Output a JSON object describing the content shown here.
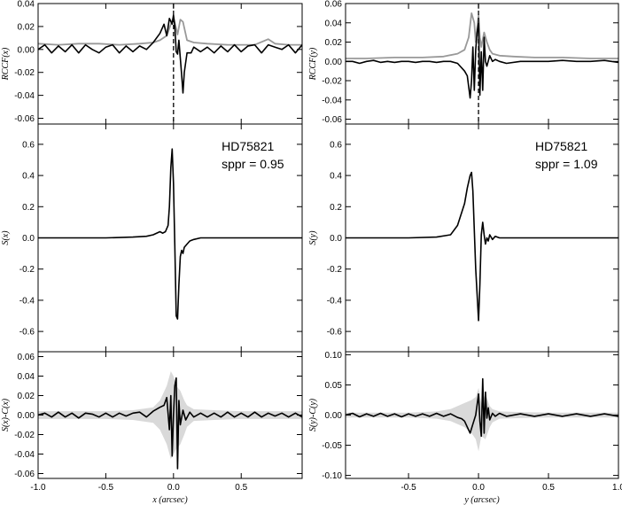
{
  "colors": {
    "primary": "#000000",
    "secondary": "#999999",
    "envelope": "#d9d9d9",
    "background": "#ffffff"
  },
  "chart_data": [
    {
      "type": "line",
      "panel": "x-top",
      "ylabel": "RCCF(x)",
      "xlim": [
        -1.0,
        0.95
      ],
      "ylim": [
        -0.065,
        0.04
      ],
      "yticks": [
        -0.06,
        -0.04,
        -0.02,
        0.0,
        0.02,
        0.04
      ],
      "ytick_labels": [
        "-0.06",
        "-0.04",
        "-0.02",
        "0.00",
        "0.02",
        "0.04"
      ],
      "xticks": [
        -1.0,
        -0.5,
        0.0,
        0.5
      ],
      "vline": 0.0,
      "series": [
        {
          "x": [
            -1.0,
            -0.85,
            -0.7,
            -0.55,
            -0.4,
            -0.25,
            -0.15,
            -0.1,
            -0.05,
            -0.02,
            0.0,
            0.02,
            0.03,
            0.05,
            0.07,
            0.1,
            0.15,
            0.25,
            0.4,
            0.6,
            0.7,
            0.75,
            0.85,
            0.95
          ],
          "y": [
            0.005,
            0.004,
            0.005,
            0.005,
            0.004,
            0.005,
            0.006,
            0.008,
            0.012,
            0.022,
            0.028,
            0.018,
            0.013,
            0.026,
            0.024,
            0.008,
            0.006,
            0.005,
            0.004,
            0.004,
            0.009,
            0.005,
            0.004,
            0.004
          ]
        },
        {
          "x": [
            -1.0,
            -0.95,
            -0.9,
            -0.85,
            -0.8,
            -0.75,
            -0.7,
            -0.65,
            -0.6,
            -0.55,
            -0.5,
            -0.45,
            -0.4,
            -0.35,
            -0.3,
            -0.25,
            -0.2,
            -0.15,
            -0.1,
            -0.07,
            -0.05,
            -0.03,
            -0.01,
            0.0,
            0.01,
            0.02,
            0.03,
            0.04,
            0.06,
            0.07,
            0.08,
            0.1,
            0.13,
            0.15,
            0.2,
            0.25,
            0.3,
            0.35,
            0.4,
            0.45,
            0.5,
            0.55,
            0.6,
            0.65,
            0.7,
            0.75,
            0.8,
            0.85,
            0.9,
            0.95
          ],
          "y": [
            0.0,
            0.004,
            -0.003,
            0.003,
            -0.002,
            0.004,
            -0.003,
            0.004,
            0.0,
            -0.003,
            0.002,
            0.004,
            -0.003,
            0.003,
            -0.002,
            0.003,
            0.0,
            0.006,
            0.014,
            0.022,
            0.012,
            0.027,
            0.022,
            0.03,
            0.02,
            -0.002,
            -0.004,
            0.008,
            -0.022,
            -0.038,
            -0.02,
            -0.003,
            -0.003,
            0.002,
            -0.002,
            0.002,
            -0.003,
            0.003,
            -0.002,
            0.004,
            -0.002,
            0.003,
            0.004,
            -0.003,
            0.004,
            0.002,
            0.0,
            0.004,
            -0.003,
            0.004
          ]
        }
      ]
    },
    {
      "type": "line",
      "panel": "x-middle",
      "ylabel": "S(x)",
      "xlim": [
        -1.0,
        0.95
      ],
      "ylim": [
        -0.73,
        0.73
      ],
      "yticks": [
        -0.6,
        -0.4,
        -0.2,
        0.0,
        0.2,
        0.4,
        0.6
      ],
      "ytick_labels": [
        "-0.6",
        "-0.4",
        "-0.2",
        "0.0",
        "0.2",
        "0.4",
        "0.6"
      ],
      "xticks": [
        -1.0,
        -0.5,
        0.0,
        0.5
      ],
      "annotations": [
        "HD75821",
        "sppr = 0.95"
      ],
      "series": [
        {
          "x": [
            -1.0,
            -0.5,
            -0.3,
            -0.2,
            -0.15,
            -0.1,
            -0.08,
            -0.06,
            -0.04,
            -0.03,
            -0.02,
            -0.01,
            0.0,
            0.01,
            0.02,
            0.03,
            0.04,
            0.05,
            0.06,
            0.07,
            0.08,
            0.1,
            0.12,
            0.15,
            0.2,
            0.3,
            0.5,
            1.0
          ],
          "y": [
            0.0,
            0.0,
            0.005,
            0.01,
            0.02,
            0.04,
            0.03,
            0.04,
            0.08,
            0.2,
            0.45,
            0.57,
            0.35,
            -0.05,
            -0.5,
            -0.52,
            -0.3,
            -0.12,
            -0.08,
            -0.1,
            -0.06,
            -0.04,
            -0.02,
            -0.01,
            0.0,
            0.0,
            0.0,
            0.0
          ]
        }
      ]
    },
    {
      "type": "line",
      "panel": "x-bottom",
      "ylabel": "S(x)-C(x)",
      "xlabel": "x (arcsec)",
      "xlim": [
        -1.0,
        0.95
      ],
      "ylim": [
        -0.065,
        0.065
      ],
      "yticks": [
        -0.06,
        -0.04,
        -0.02,
        0.0,
        0.02,
        0.04,
        0.06
      ],
      "ytick_labels": [
        "-0.06",
        "-0.04",
        "-0.02",
        "0.00",
        "0.02",
        "0.04",
        "0.06"
      ],
      "xticks": [
        -1.0,
        -0.5,
        0.0,
        0.5
      ],
      "xtick_labels": [
        "-1.0",
        "-0.5",
        "0.0",
        "0.5"
      ],
      "envelope": {
        "x": [
          -1.0,
          -0.5,
          -0.3,
          -0.15,
          -0.1,
          -0.05,
          -0.02,
          0.0,
          0.02,
          0.05,
          0.08,
          0.1,
          0.15,
          0.3,
          0.5,
          1.0
        ],
        "upper": [
          0.004,
          0.004,
          0.005,
          0.008,
          0.015,
          0.03,
          0.045,
          0.04,
          0.03,
          0.025,
          0.015,
          0.01,
          0.006,
          0.005,
          0.004,
          0.004
        ],
        "lower": [
          -0.004,
          -0.004,
          -0.005,
          -0.008,
          -0.015,
          -0.03,
          -0.045,
          -0.04,
          -0.035,
          -0.03,
          -0.02,
          -0.012,
          -0.006,
          -0.005,
          -0.004,
          -0.004
        ]
      },
      "series": [
        {
          "x": [
            -1.0,
            -0.95,
            -0.9,
            -0.85,
            -0.8,
            -0.75,
            -0.7,
            -0.65,
            -0.6,
            -0.55,
            -0.5,
            -0.45,
            -0.4,
            -0.35,
            -0.3,
            -0.25,
            -0.2,
            -0.15,
            -0.1,
            -0.07,
            -0.05,
            -0.03,
            -0.02,
            -0.01,
            0.0,
            0.01,
            0.02,
            0.03,
            0.04,
            0.05,
            0.07,
            0.09,
            0.12,
            0.15,
            0.2,
            0.25,
            0.3,
            0.35,
            0.4,
            0.45,
            0.5,
            0.55,
            0.6,
            0.65,
            0.7,
            0.75,
            0.8,
            0.85,
            0.9,
            0.95
          ],
          "y": [
            0.0,
            0.002,
            -0.002,
            0.003,
            -0.002,
            0.002,
            -0.003,
            0.002,
            0.001,
            -0.002,
            0.002,
            -0.002,
            0.002,
            -0.001,
            0.002,
            0.003,
            -0.002,
            0.004,
            0.008,
            0.01,
            0.018,
            -0.015,
            0.02,
            -0.042,
            0.0,
            0.03,
            0.038,
            -0.055,
            0.015,
            -0.01,
            0.005,
            -0.005,
            0.003,
            -0.002,
            0.002,
            -0.002,
            0.002,
            -0.002,
            0.003,
            -0.002,
            0.002,
            -0.002,
            0.003,
            -0.002,
            0.002,
            -0.001,
            0.002,
            -0.002,
            0.002,
            -0.002
          ]
        }
      ]
    },
    {
      "type": "line",
      "panel": "y-top",
      "ylabel": "RCCF(y)",
      "xlim": [
        -0.95,
        1.0
      ],
      "ylim": [
        -0.065,
        0.06
      ],
      "yticks": [
        -0.06,
        -0.04,
        -0.02,
        0.0,
        0.02,
        0.04,
        0.06
      ],
      "ytick_labels": [
        "-0.06",
        "-0.04",
        "-0.02",
        "0.00",
        "0.02",
        "0.04",
        "0.06"
      ],
      "xticks": [
        -0.5,
        0.0,
        0.5,
        1.0
      ],
      "vline": 0.0,
      "series": [
        {
          "x": [
            -0.95,
            -0.8,
            -0.6,
            -0.4,
            -0.25,
            -0.15,
            -0.1,
            -0.07,
            -0.05,
            -0.03,
            -0.02,
            0.0,
            0.01,
            0.02,
            0.04,
            0.06,
            0.08,
            0.1,
            0.15,
            0.25,
            0.4,
            0.6,
            0.8,
            1.0
          ],
          "y": [
            0.003,
            0.003,
            0.004,
            0.004,
            0.005,
            0.008,
            0.012,
            0.025,
            0.05,
            0.04,
            0.02,
            0.048,
            0.025,
            0.015,
            0.03,
            0.02,
            0.012,
            0.008,
            0.006,
            0.005,
            0.004,
            0.004,
            0.003,
            0.003
          ]
        },
        {
          "x": [
            -0.95,
            -0.9,
            -0.85,
            -0.8,
            -0.75,
            -0.7,
            -0.65,
            -0.6,
            -0.55,
            -0.5,
            -0.45,
            -0.4,
            -0.35,
            -0.3,
            -0.25,
            -0.2,
            -0.15,
            -0.1,
            -0.08,
            -0.06,
            -0.05,
            -0.04,
            -0.03,
            -0.02,
            -0.01,
            0.0,
            0.01,
            0.02,
            0.03,
            0.04,
            0.05,
            0.06,
            0.08,
            0.1,
            0.12,
            0.15,
            0.2,
            0.3,
            0.4,
            0.5,
            0.6,
            0.7,
            0.8,
            0.9,
            1.0
          ],
          "y": [
            0.0,
            0.0,
            -0.002,
            0.0,
            0.001,
            -0.001,
            0.0,
            -0.001,
            0.0,
            0.0,
            -0.001,
            0.0,
            0.0,
            -0.001,
            0.0,
            0.0,
            -0.002,
            -0.01,
            -0.015,
            -0.038,
            -0.02,
            0.015,
            -0.03,
            0.012,
            0.03,
            0.04,
            -0.035,
            0.01,
            -0.03,
            0.025,
            0.0,
            -0.005,
            0.006,
            0.0,
            0.002,
            0.0,
            -0.002,
            0.0,
            0.0,
            0.0,
            0.001,
            0.0,
            0.0,
            0.001,
            -0.001
          ]
        }
      ]
    },
    {
      "type": "line",
      "panel": "y-middle",
      "ylabel": "S(y)",
      "xlim": [
        -0.95,
        1.0
      ],
      "ylim": [
        -0.73,
        0.73
      ],
      "yticks": [
        -0.6,
        -0.4,
        -0.2,
        0.0,
        0.2,
        0.4,
        0.6
      ],
      "ytick_labels": [
        "-0.6",
        "-0.4",
        "-0.2",
        "0.0",
        "0.2",
        "0.4",
        "0.6"
      ],
      "xticks": [
        -0.5,
        0.0,
        0.5,
        1.0
      ],
      "annotations": [
        "HD75821",
        "sppr = 1.09"
      ],
      "series": [
        {
          "x": [
            -0.95,
            -0.5,
            -0.3,
            -0.2,
            -0.15,
            -0.1,
            -0.08,
            -0.06,
            -0.05,
            -0.04,
            -0.02,
            0.0,
            0.01,
            0.02,
            0.03,
            0.04,
            0.05,
            0.06,
            0.07,
            0.08,
            0.1,
            0.12,
            0.15,
            0.2,
            0.3,
            0.5,
            1.0
          ],
          "y": [
            0.0,
            0.0,
            0.005,
            0.02,
            0.08,
            0.22,
            0.32,
            0.4,
            0.42,
            0.3,
            -0.2,
            -0.53,
            -0.3,
            0.02,
            0.1,
            0.02,
            -0.04,
            0.0,
            -0.02,
            0.02,
            -0.01,
            0.01,
            0.0,
            0.0,
            0.0,
            0.0,
            0.0
          ]
        }
      ]
    },
    {
      "type": "line",
      "panel": "y-bottom",
      "ylabel": "S(y)-C(y)",
      "xlabel": "y (arcsec)",
      "xlim": [
        -0.95,
        1.0
      ],
      "ylim": [
        -0.105,
        0.105
      ],
      "yticks": [
        -0.1,
        -0.05,
        0.0,
        0.05,
        0.1
      ],
      "ytick_labels": [
        "-0.10",
        "-0.05",
        "0.00",
        "0.05",
        "0.10"
      ],
      "xticks": [
        -0.5,
        0.0,
        0.5,
        1.0
      ],
      "xtick_labels": [
        "-0.5",
        "0.0",
        "0.5",
        "1.0"
      ],
      "envelope": {
        "x": [
          -0.95,
          -0.5,
          -0.3,
          -0.2,
          -0.1,
          -0.05,
          -0.02,
          0.0,
          0.02,
          0.05,
          0.08,
          0.1,
          0.15,
          0.3,
          0.5,
          1.0
        ],
        "upper": [
          0.004,
          0.004,
          0.006,
          0.01,
          0.02,
          0.025,
          0.03,
          0.045,
          0.02,
          0.035,
          0.015,
          0.01,
          0.006,
          0.005,
          0.004,
          0.004
        ],
        "lower": [
          -0.004,
          -0.004,
          -0.006,
          -0.01,
          -0.02,
          -0.03,
          -0.04,
          -0.06,
          -0.035,
          -0.04,
          -0.02,
          -0.012,
          -0.006,
          -0.005,
          -0.004,
          -0.004
        ]
      },
      "series": [
        {
          "x": [
            -0.95,
            -0.9,
            -0.85,
            -0.8,
            -0.75,
            -0.7,
            -0.65,
            -0.6,
            -0.55,
            -0.5,
            -0.45,
            -0.4,
            -0.35,
            -0.3,
            -0.25,
            -0.2,
            -0.15,
            -0.12,
            -0.1,
            -0.08,
            -0.06,
            -0.04,
            -0.02,
            0.0,
            0.01,
            0.02,
            0.03,
            0.04,
            0.05,
            0.06,
            0.07,
            0.08,
            0.1,
            0.12,
            0.15,
            0.2,
            0.3,
            0.4,
            0.5,
            0.6,
            0.7,
            0.8,
            0.9,
            1.0
          ],
          "y": [
            0.0,
            0.003,
            -0.003,
            0.002,
            -0.002,
            0.003,
            -0.002,
            0.002,
            -0.003,
            0.002,
            -0.002,
            0.002,
            -0.002,
            0.003,
            -0.002,
            0.002,
            -0.004,
            -0.006,
            -0.01,
            -0.02,
            -0.03,
            -0.015,
            0.0,
            0.035,
            -0.01,
            -0.035,
            0.06,
            -0.03,
            0.038,
            -0.005,
            0.012,
            -0.008,
            0.003,
            -0.002,
            0.003,
            -0.002,
            0.002,
            -0.002,
            0.002,
            -0.002,
            0.002,
            -0.002,
            0.002,
            -0.002
          ]
        }
      ]
    }
  ]
}
